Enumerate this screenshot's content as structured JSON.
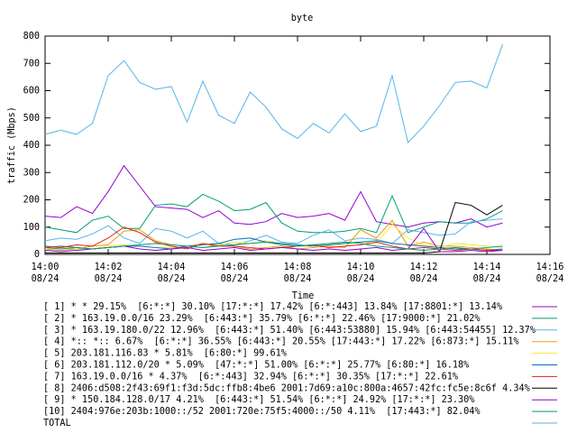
{
  "chart_data": {
    "type": "line",
    "title": "byte",
    "xlabel": "Time",
    "ylabel": "traffic (Mbps)",
    "x": [
      0,
      0.5,
      1,
      1.5,
      2,
      2.5,
      3,
      3.5,
      4,
      4.5,
      5,
      5.5,
      6,
      6.5,
      7,
      7.5,
      8,
      8.5,
      9,
      9.5,
      10,
      10.5,
      11,
      11.5,
      12,
      12.5,
      13,
      13.5,
      14,
      14.5
    ],
    "xlim": [
      0,
      16
    ],
    "xticks": [
      {
        "value": 0,
        "label": "14:00\n08/24"
      },
      {
        "value": 2,
        "label": "14:02\n08/24"
      },
      {
        "value": 4,
        "label": "14:04\n08/24"
      },
      {
        "value": 6,
        "label": "14:06\n08/24"
      },
      {
        "value": 8,
        "label": "14:08\n08/24"
      },
      {
        "value": 10,
        "label": "14:10\n08/24"
      },
      {
        "value": 12,
        "label": "14:12\n08/24"
      },
      {
        "value": 14,
        "label": "14:14\n08/24"
      },
      {
        "value": 16,
        "label": "14:16\n08/24"
      }
    ],
    "ylim": [
      0,
      800
    ],
    "yticks": [
      0,
      100,
      200,
      300,
      400,
      500,
      600,
      700,
      800
    ],
    "grid": false,
    "series": [
      {
        "name": "[ 1] * * 29.15%  [6:*:*] 30.10% [17:*:*] 17.42% [6:*:443] 13.84% [17:8801:*] 13.14%",
        "color": "#9400d3",
        "values": [
          140,
          135,
          175,
          150,
          230,
          325,
          250,
          175,
          170,
          165,
          135,
          160,
          115,
          110,
          120,
          150,
          135,
          140,
          150,
          125,
          230,
          120,
          110,
          100,
          115,
          120,
          115,
          130,
          100,
          115
        ]
      },
      {
        "name": "[ 2] * 163.19.0.0/16 23.29%  [6:443:*] 35.79% [6:*:*] 22.46% [17:9000:*] 21.02%",
        "color": "#009e73",
        "values": [
          100,
          90,
          80,
          125,
          140,
          95,
          95,
          180,
          185,
          175,
          220,
          195,
          160,
          165,
          190,
          115,
          85,
          80,
          80,
          85,
          95,
          80,
          215,
          80,
          100,
          120,
          115,
          115,
          130,
          160
        ]
      },
      {
        "name": "[ 3] * 163.19.180.0/22 12.96%  [6:443:*] 51.40% [6:443:53880] 15.94% [6:443:54455] 12.37%",
        "color": "#56b4e9",
        "values": [
          50,
          60,
          55,
          75,
          105,
          60,
          40,
          95,
          85,
          60,
          85,
          40,
          35,
          50,
          70,
          45,
          40,
          70,
          90,
          50,
          60,
          55,
          40,
          90,
          80,
          70,
          75,
          120,
          125,
          130
        ]
      },
      {
        "name": "[ 4] *:: *:: 6.67%  [6:*:*] 36.55% [6:443:*] 20.55% [17:443:*] 17.22% [6:873:*] 15.11%",
        "color": "#e69f00",
        "values": [
          20,
          15,
          20,
          30,
          35,
          85,
          90,
          50,
          35,
          30,
          25,
          35,
          30,
          20,
          25,
          30,
          20,
          25,
          30,
          25,
          90,
          60,
          125,
          30,
          45,
          30,
          30,
          25,
          20,
          15
        ]
      },
      {
        "name": "[ 5] 203.181.116.83 * 5.81%  [6:80:*] 99.61%",
        "color": "#f0e442",
        "values": [
          20,
          25,
          20,
          20,
          30,
          35,
          30,
          25,
          25,
          30,
          40,
          35,
          45,
          40,
          50,
          40,
          30,
          30,
          35,
          45,
          45,
          40,
          110,
          60,
          35,
          25,
          40,
          35,
          30,
          25
        ]
      },
      {
        "name": "[ 6] 203.181.112.0/20 * 5.09%  [47:*:*] 51.00% [6:*:*] 25.77% [6:80:*] 16.18%",
        "color": "#0072b2",
        "values": [
          25,
          30,
          25,
          20,
          25,
          30,
          30,
          25,
          20,
          30,
          35,
          40,
          55,
          60,
          45,
          40,
          35,
          30,
          35,
          40,
          45,
          50,
          40,
          35,
          30,
          25,
          20,
          20,
          15,
          20
        ]
      },
      {
        "name": "[ 7] 163.19.0.0/16 * 4.37%  [6:*:443] 32.94% [6:*:*] 30.35% [17:*:*] 22.61%",
        "color": "#e51e10",
        "values": [
          30,
          25,
          35,
          30,
          60,
          100,
          80,
          45,
          30,
          20,
          40,
          30,
          30,
          25,
          20,
          25,
          30,
          35,
          25,
          30,
          35,
          45,
          30,
          20,
          25,
          20,
          15,
          20,
          15,
          15
        ]
      },
      {
        "name": "[ 8] 2406:d508:2f43:69f1:f3d:5dc:ffb8:4be6 2001:7d69:a10c:800a:4657:42fc:fc5e:8c6f 4.34%",
        "color": "#000000",
        "values": [
          5,
          5,
          5,
          5,
          5,
          5,
          5,
          5,
          5,
          5,
          5,
          5,
          5,
          5,
          5,
          5,
          5,
          5,
          5,
          5,
          5,
          5,
          5,
          5,
          5,
          10,
          190,
          180,
          145,
          180
        ]
      },
      {
        "name": "[ 9] * 150.184.128.0/17 4.21%  [6:443:*] 51.54% [6:*:*] 24.92% [17:*:*] 23.30%",
        "color": "#9400d3",
        "values": [
          15,
          10,
          15,
          20,
          25,
          30,
          20,
          15,
          20,
          25,
          15,
          20,
          25,
          15,
          20,
          25,
          20,
          15,
          20,
          15,
          20,
          25,
          15,
          20,
          95,
          10,
          10,
          15,
          10,
          15
        ]
      },
      {
        "name": "[10] 2404:976e:203b:1000::/52 2001:720e:75f5:4000::/50 4.11%  [17:443:*] 82.04%",
        "color": "#009e73",
        "values": [
          25,
          20,
          25,
          20,
          25,
          30,
          35,
          40,
          35,
          30,
          25,
          30,
          35,
          40,
          45,
          35,
          30,
          35,
          40,
          45,
          40,
          30,
          25,
          20,
          15,
          20,
          25,
          20,
          25,
          30
        ]
      },
      {
        "name": "TOTAL",
        "color": "#56b4e9",
        "values": [
          440,
          455,
          440,
          480,
          655,
          710,
          630,
          605,
          615,
          485,
          635,
          510,
          480,
          595,
          540,
          460,
          425,
          480,
          445,
          515,
          450,
          470,
          655,
          410,
          470,
          545,
          630,
          635,
          610,
          770
        ]
      }
    ]
  }
}
